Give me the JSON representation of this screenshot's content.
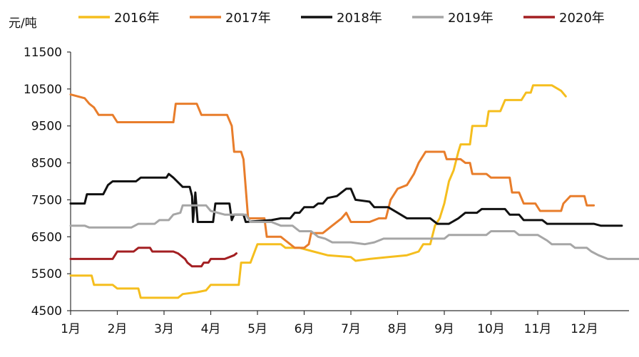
{
  "chart_data": {
    "type": "line",
    "title": "",
    "xlabel": "",
    "ylabel": "元/吨",
    "ylim": [
      4500,
      11500
    ],
    "yticks": [
      4500,
      5500,
      6500,
      7500,
      8500,
      9500,
      10500,
      11500
    ],
    "xlim": [
      1,
      13.2
    ],
    "x_ticks": [
      {
        "label": "1月",
        "x": 1
      },
      {
        "label": "2月",
        "x": 2
      },
      {
        "label": "3月",
        "x": 3
      },
      {
        "label": "4月",
        "x": 4
      },
      {
        "label": "5月",
        "x": 5
      },
      {
        "label": "6月",
        "x": 6
      },
      {
        "label": "7月",
        "x": 7
      },
      {
        "label": "8月",
        "x": 8
      },
      {
        "label": "9月",
        "x": 9
      },
      {
        "label": "10月",
        "x": 10
      },
      {
        "label": "11月",
        "x": 11
      },
      {
        "label": "12月",
        "x": 12
      }
    ],
    "grid": false,
    "legend_position": "top",
    "series": [
      {
        "name": "2016年",
        "color": "#F5BE1E",
        "points": [
          [
            1.0,
            5450
          ],
          [
            1.45,
            5450
          ],
          [
            1.5,
            5200
          ],
          [
            1.9,
            5200
          ],
          [
            2.0,
            5100
          ],
          [
            2.45,
            5100
          ],
          [
            2.5,
            4850
          ],
          [
            3.3,
            4850
          ],
          [
            3.4,
            4950
          ],
          [
            3.7,
            5000
          ],
          [
            3.9,
            5050
          ],
          [
            4.0,
            5200
          ],
          [
            4.6,
            5200
          ],
          [
            4.65,
            5800
          ],
          [
            4.85,
            5800
          ],
          [
            5.0,
            6300
          ],
          [
            5.5,
            6300
          ],
          [
            5.6,
            6200
          ],
          [
            5.9,
            6200
          ],
          [
            6.2,
            6100
          ],
          [
            6.5,
            6000
          ],
          [
            7.0,
            5950
          ],
          [
            7.1,
            5850
          ],
          [
            7.4,
            5900
          ],
          [
            7.8,
            5950
          ],
          [
            8.2,
            6000
          ],
          [
            8.45,
            6100
          ],
          [
            8.55,
            6300
          ],
          [
            8.7,
            6300
          ],
          [
            8.8,
            6800
          ],
          [
            8.9,
            7000
          ],
          [
            9.0,
            7400
          ],
          [
            9.1,
            8000
          ],
          [
            9.2,
            8300
          ],
          [
            9.3,
            8800
          ],
          [
            9.35,
            9000
          ],
          [
            9.55,
            9000
          ],
          [
            9.6,
            9500
          ],
          [
            9.9,
            9500
          ],
          [
            9.95,
            9900
          ],
          [
            10.2,
            9900
          ],
          [
            10.3,
            10200
          ],
          [
            10.65,
            10200
          ],
          [
            10.75,
            10400
          ],
          [
            10.85,
            10400
          ],
          [
            10.9,
            10600
          ],
          [
            11.3,
            10600
          ],
          [
            11.5,
            10450
          ],
          [
            11.6,
            10300
          ]
        ]
      },
      {
        "name": "2017年",
        "color": "#E87D2B",
        "points": [
          [
            1.0,
            10350
          ],
          [
            1.3,
            10250
          ],
          [
            1.4,
            10100
          ],
          [
            1.5,
            10000
          ],
          [
            1.6,
            9800
          ],
          [
            1.9,
            9800
          ],
          [
            2.0,
            9600
          ],
          [
            3.2,
            9600
          ],
          [
            3.25,
            10100
          ],
          [
            3.7,
            10100
          ],
          [
            3.8,
            9800
          ],
          [
            4.35,
            9800
          ],
          [
            4.45,
            9500
          ],
          [
            4.5,
            8800
          ],
          [
            4.65,
            8800
          ],
          [
            4.7,
            8600
          ],
          [
            4.8,
            7000
          ],
          [
            5.15,
            7000
          ],
          [
            5.2,
            6500
          ],
          [
            5.5,
            6500
          ],
          [
            5.6,
            6400
          ],
          [
            5.8,
            6200
          ],
          [
            6.0,
            6200
          ],
          [
            6.1,
            6300
          ],
          [
            6.15,
            6600
          ],
          [
            6.4,
            6600
          ],
          [
            6.6,
            6800
          ],
          [
            6.8,
            7000
          ],
          [
            6.9,
            7150
          ],
          [
            7.0,
            6900
          ],
          [
            7.4,
            6900
          ],
          [
            7.6,
            7000
          ],
          [
            7.75,
            7000
          ],
          [
            7.85,
            7500
          ],
          [
            8.0,
            7800
          ],
          [
            8.2,
            7900
          ],
          [
            8.35,
            8200
          ],
          [
            8.45,
            8500
          ],
          [
            8.6,
            8800
          ],
          [
            9.0,
            8800
          ],
          [
            9.05,
            8600
          ],
          [
            9.35,
            8600
          ],
          [
            9.45,
            8500
          ],
          [
            9.55,
            8500
          ],
          [
            9.6,
            8200
          ],
          [
            9.9,
            8200
          ],
          [
            10.0,
            8100
          ],
          [
            10.4,
            8100
          ],
          [
            10.45,
            7700
          ],
          [
            10.6,
            7700
          ],
          [
            10.7,
            7400
          ],
          [
            10.95,
            7400
          ],
          [
            11.05,
            7200
          ],
          [
            11.5,
            7200
          ],
          [
            11.55,
            7400
          ],
          [
            11.7,
            7600
          ],
          [
            12.0,
            7600
          ],
          [
            12.05,
            7350
          ],
          [
            12.2,
            7350
          ]
        ]
      },
      {
        "name": "2018年",
        "color": "#111111",
        "points": [
          [
            1.0,
            7400
          ],
          [
            1.3,
            7400
          ],
          [
            1.35,
            7650
          ],
          [
            1.7,
            7650
          ],
          [
            1.8,
            7900
          ],
          [
            1.9,
            8000
          ],
          [
            2.4,
            8000
          ],
          [
            2.5,
            8100
          ],
          [
            3.05,
            8100
          ],
          [
            3.1,
            8200
          ],
          [
            3.2,
            8100
          ],
          [
            3.4,
            7850
          ],
          [
            3.55,
            7850
          ],
          [
            3.6,
            7600
          ],
          [
            3.62,
            6900
          ],
          [
            3.67,
            7700
          ],
          [
            3.72,
            6900
          ],
          [
            4.05,
            6900
          ],
          [
            4.1,
            7400
          ],
          [
            4.4,
            7400
          ],
          [
            4.45,
            6950
          ],
          [
            4.5,
            7100
          ],
          [
            4.7,
            7100
          ],
          [
            4.75,
            6900
          ],
          [
            5.3,
            6950
          ],
          [
            5.5,
            7000
          ],
          [
            5.7,
            7000
          ],
          [
            5.8,
            7150
          ],
          [
            5.9,
            7150
          ],
          [
            6.0,
            7300
          ],
          [
            6.2,
            7300
          ],
          [
            6.3,
            7400
          ],
          [
            6.4,
            7400
          ],
          [
            6.5,
            7550
          ],
          [
            6.7,
            7600
          ],
          [
            6.8,
            7700
          ],
          [
            6.9,
            7800
          ],
          [
            7.0,
            7800
          ],
          [
            7.1,
            7500
          ],
          [
            7.4,
            7450
          ],
          [
            7.5,
            7300
          ],
          [
            7.8,
            7300
          ],
          [
            8.0,
            7150
          ],
          [
            8.2,
            7000
          ],
          [
            8.7,
            7000
          ],
          [
            8.85,
            6850
          ],
          [
            9.1,
            6850
          ],
          [
            9.3,
            7000
          ],
          [
            9.45,
            7150
          ],
          [
            9.7,
            7150
          ],
          [
            9.8,
            7250
          ],
          [
            10.3,
            7250
          ],
          [
            10.4,
            7100
          ],
          [
            10.6,
            7100
          ],
          [
            10.7,
            6950
          ],
          [
            11.1,
            6950
          ],
          [
            11.2,
            6850
          ],
          [
            12.2,
            6850
          ],
          [
            12.35,
            6800
          ],
          [
            12.8,
            6800
          ]
        ]
      },
      {
        "name": "2019年",
        "color": "#A6A6A6",
        "points": [
          [
            1.0,
            6800
          ],
          [
            1.3,
            6800
          ],
          [
            1.4,
            6750
          ],
          [
            2.3,
            6750
          ],
          [
            2.45,
            6850
          ],
          [
            2.8,
            6850
          ],
          [
            2.9,
            6950
          ],
          [
            3.1,
            6950
          ],
          [
            3.2,
            7100
          ],
          [
            3.35,
            7150
          ],
          [
            3.4,
            7350
          ],
          [
            3.9,
            7350
          ],
          [
            4.0,
            7200
          ],
          [
            4.3,
            7100
          ],
          [
            4.75,
            7100
          ],
          [
            4.85,
            6900
          ],
          [
            5.3,
            6900
          ],
          [
            5.5,
            6800
          ],
          [
            5.75,
            6800
          ],
          [
            5.9,
            6650
          ],
          [
            6.15,
            6650
          ],
          [
            6.3,
            6500
          ],
          [
            6.45,
            6450
          ],
          [
            6.6,
            6350
          ],
          [
            7.0,
            6350
          ],
          [
            7.3,
            6300
          ],
          [
            7.5,
            6350
          ],
          [
            7.7,
            6450
          ],
          [
            8.0,
            6450
          ],
          [
            8.4,
            6450
          ],
          [
            8.75,
            6450
          ],
          [
            9.0,
            6450
          ],
          [
            9.1,
            6550
          ],
          [
            9.9,
            6550
          ],
          [
            10.0,
            6650
          ],
          [
            10.5,
            6650
          ],
          [
            10.6,
            6550
          ],
          [
            11.0,
            6550
          ],
          [
            11.2,
            6400
          ],
          [
            11.3,
            6300
          ],
          [
            11.7,
            6300
          ],
          [
            11.8,
            6200
          ],
          [
            12.05,
            6200
          ],
          [
            12.15,
            6100
          ],
          [
            12.3,
            6000
          ],
          [
            12.5,
            5900
          ],
          [
            13.2,
            5900
          ]
        ]
      },
      {
        "name": "2020年",
        "color": "#A31F22",
        "points": [
          [
            1.0,
            5900
          ],
          [
            1.9,
            5900
          ],
          [
            2.0,
            6100
          ],
          [
            2.35,
            6100
          ],
          [
            2.45,
            6200
          ],
          [
            2.7,
            6200
          ],
          [
            2.75,
            6100
          ],
          [
            3.2,
            6100
          ],
          [
            3.3,
            6050
          ],
          [
            3.45,
            5900
          ],
          [
            3.5,
            5800
          ],
          [
            3.6,
            5700
          ],
          [
            3.8,
            5700
          ],
          [
            3.85,
            5800
          ],
          [
            3.95,
            5800
          ],
          [
            4.0,
            5900
          ],
          [
            4.3,
            5900
          ],
          [
            4.4,
            5950
          ],
          [
            4.5,
            6000
          ],
          [
            4.55,
            6050
          ]
        ]
      }
    ]
  }
}
